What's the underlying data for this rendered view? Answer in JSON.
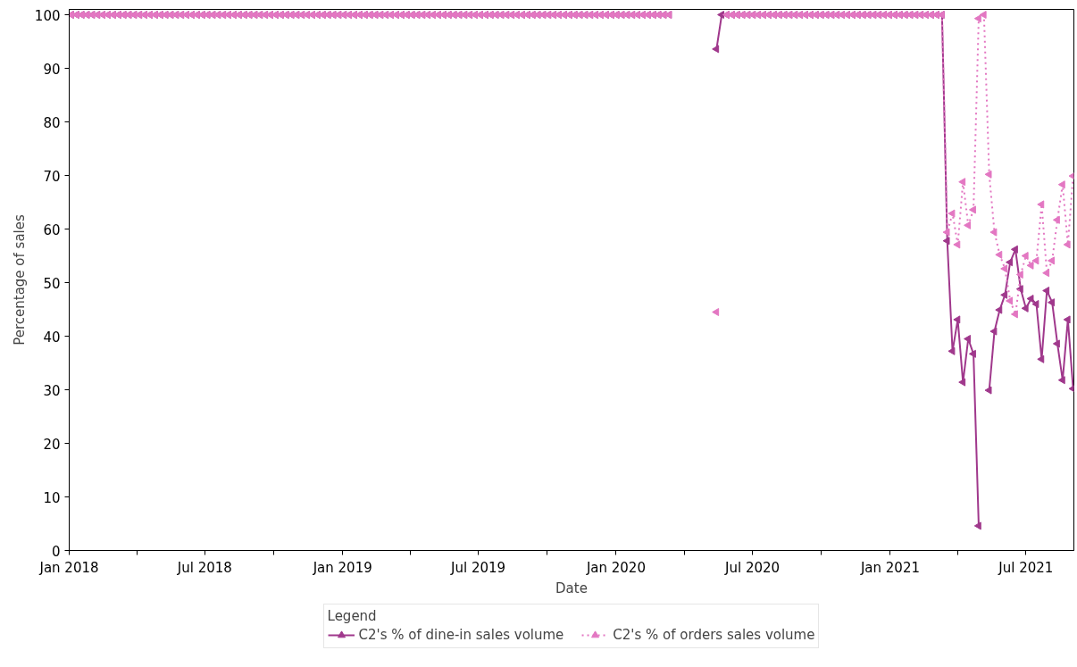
{
  "chart_data": {
    "type": "line",
    "xlabel": "Date",
    "ylabel": "Percentage of sales",
    "legend_title": "Legend",
    "legend": "bottom",
    "marker": "triangle",
    "grid": false,
    "xlim": [
      "2018-01-01",
      "2021-09-03"
    ],
    "ylim": [
      0,
      101
    ],
    "yticks": [
      0,
      10,
      20,
      30,
      40,
      50,
      60,
      70,
      80,
      90,
      100
    ],
    "xticks": [
      {
        "value": "2018-01-01",
        "label": "Jan 2018"
      },
      {
        "value": "2018-04-01",
        "label": null
      },
      {
        "value": "2018-07-01",
        "label": "Jul 2018"
      },
      {
        "value": "2018-10-01",
        "label": null
      },
      {
        "value": "2019-01-01",
        "label": "Jan 2019"
      },
      {
        "value": "2019-04-01",
        "label": null
      },
      {
        "value": "2019-07-01",
        "label": "Jul 2019"
      },
      {
        "value": "2019-10-01",
        "label": null
      },
      {
        "value": "2020-01-01",
        "label": "Jan 2020"
      },
      {
        "value": "2020-04-01",
        "label": null
      },
      {
        "value": "2020-07-01",
        "label": "Jul 2020"
      },
      {
        "value": "2020-10-01",
        "label": null
      },
      {
        "value": "2021-01-01",
        "label": "Jan 2021"
      },
      {
        "value": "2021-04-01",
        "label": null
      },
      {
        "value": "2021-07-01",
        "label": "Jul 2021"
      }
    ],
    "x": [
      "2018-01-04",
      "2018-01-11",
      "2018-01-18",
      "2018-01-25",
      "2018-02-01",
      "2018-02-08",
      "2018-02-15",
      "2018-02-22",
      "2018-03-01",
      "2018-03-08",
      "2018-03-15",
      "2018-03-22",
      "2018-03-29",
      "2018-04-05",
      "2018-04-12",
      "2018-04-19",
      "2018-04-26",
      "2018-05-03",
      "2018-05-10",
      "2018-05-17",
      "2018-05-24",
      "2018-05-31",
      "2018-06-07",
      "2018-06-14",
      "2018-06-21",
      "2018-06-28",
      "2018-07-05",
      "2018-07-12",
      "2018-07-19",
      "2018-07-26",
      "2018-08-02",
      "2018-08-09",
      "2018-08-16",
      "2018-08-23",
      "2018-08-30",
      "2018-09-06",
      "2018-09-13",
      "2018-09-20",
      "2018-09-27",
      "2018-10-04",
      "2018-10-11",
      "2018-10-18",
      "2018-10-25",
      "2018-11-01",
      "2018-11-08",
      "2018-11-15",
      "2018-11-22",
      "2018-11-29",
      "2018-12-06",
      "2018-12-13",
      "2018-12-20",
      "2018-12-27",
      "2019-01-03",
      "2019-01-10",
      "2019-01-17",
      "2019-01-24",
      "2019-01-31",
      "2019-02-07",
      "2019-02-14",
      "2019-02-21",
      "2019-02-28",
      "2019-03-07",
      "2019-03-14",
      "2019-03-21",
      "2019-03-28",
      "2019-04-04",
      "2019-04-11",
      "2019-04-18",
      "2019-04-25",
      "2019-05-02",
      "2019-05-09",
      "2019-05-16",
      "2019-05-23",
      "2019-05-30",
      "2019-06-06",
      "2019-06-13",
      "2019-06-20",
      "2019-06-27",
      "2019-07-04",
      "2019-07-11",
      "2019-07-18",
      "2019-07-25",
      "2019-08-01",
      "2019-08-08",
      "2019-08-15",
      "2019-08-22",
      "2019-08-29",
      "2019-09-05",
      "2019-09-12",
      "2019-09-19",
      "2019-09-26",
      "2019-10-03",
      "2019-10-10",
      "2019-10-17",
      "2019-10-24",
      "2019-10-31",
      "2019-11-07",
      "2019-11-14",
      "2019-11-21",
      "2019-11-28",
      "2019-12-05",
      "2019-12-12",
      "2019-12-19",
      "2019-12-26",
      "2020-01-02",
      "2020-01-09",
      "2020-01-16",
      "2020-01-23",
      "2020-01-30",
      "2020-02-06",
      "2020-02-13",
      "2020-02-20",
      "2020-02-27",
      "2020-03-05",
      "2020-03-12",
      "2020-03-19",
      "2020-03-26",
      "2020-04-02",
      "2020-04-09",
      "2020-04-16",
      "2020-04-23",
      "2020-04-30",
      "2020-05-07",
      "2020-05-14",
      "2020-05-21",
      "2020-05-28",
      "2020-06-04",
      "2020-06-11",
      "2020-06-18",
      "2020-06-25",
      "2020-07-02",
      "2020-07-09",
      "2020-07-16",
      "2020-07-23",
      "2020-07-30",
      "2020-08-06",
      "2020-08-13",
      "2020-08-20",
      "2020-08-27",
      "2020-09-03",
      "2020-09-10",
      "2020-09-17",
      "2020-09-24",
      "2020-10-01",
      "2020-10-08",
      "2020-10-15",
      "2020-10-22",
      "2020-10-29",
      "2020-11-05",
      "2020-11-12",
      "2020-11-19",
      "2020-11-26",
      "2020-12-03",
      "2020-12-10",
      "2020-12-17",
      "2020-12-24",
      "2020-12-31",
      "2021-01-07",
      "2021-01-14",
      "2021-01-21",
      "2021-01-28",
      "2021-02-04",
      "2021-02-11",
      "2021-02-18",
      "2021-02-25",
      "2021-03-04",
      "2021-03-11",
      "2021-03-18",
      "2021-03-25",
      "2021-04-01",
      "2021-04-08",
      "2021-04-15",
      "2021-04-22",
      "2021-04-29",
      "2021-05-06",
      "2021-05-13",
      "2021-05-20",
      "2021-05-27",
      "2021-06-03",
      "2021-06-10",
      "2021-06-17",
      "2021-06-24",
      "2021-07-01",
      "2021-07-08",
      "2021-07-15",
      "2021-07-22",
      "2021-07-29",
      "2021-08-05",
      "2021-08-12",
      "2021-08-19",
      "2021-08-26",
      "2021-09-02"
    ],
    "series": [
      {
        "name": "C2's % of dine-in sales volume",
        "color": "#a0388c",
        "line_style": "solid",
        "values": [
          100,
          100,
          100,
          100,
          100,
          100,
          100,
          100,
          100,
          100,
          100,
          100,
          100,
          100,
          100,
          100,
          100,
          100,
          100,
          100,
          100,
          100,
          100,
          100,
          100,
          100,
          100,
          100,
          100,
          100,
          100,
          100,
          100,
          100,
          100,
          100,
          100,
          100,
          100,
          100,
          100,
          100,
          100,
          100,
          100,
          100,
          100,
          100,
          100,
          100,
          100,
          100,
          100,
          100,
          100,
          100,
          100,
          100,
          100,
          100,
          100,
          100,
          100,
          100,
          100,
          100,
          100,
          100,
          100,
          100,
          100,
          100,
          100,
          100,
          100,
          100,
          100,
          100,
          100,
          100,
          100,
          100,
          100,
          100,
          100,
          100,
          100,
          100,
          100,
          100,
          100,
          100,
          100,
          100,
          100,
          100,
          100,
          100,
          100,
          100,
          100,
          100,
          100,
          100,
          100,
          100,
          100,
          100,
          100,
          100,
          100,
          100,
          100,
          100,
          100,
          null,
          null,
          null,
          null,
          null,
          null,
          null,
          null,
          93.6,
          100,
          100,
          100,
          100,
          100,
          100,
          100,
          100,
          100,
          100,
          100,
          100,
          100,
          100,
          100,
          100,
          100,
          100,
          100,
          100,
          100,
          100,
          100,
          100,
          100,
          100,
          100,
          100,
          100,
          100,
          100,
          100,
          100,
          100,
          100,
          100,
          100,
          100,
          100,
          100,
          100,
          100,
          100,
          57.8,
          37.2,
          43.1,
          31.4,
          39.5,
          36.7,
          4.6,
          null,
          29.9,
          40.9,
          44.9,
          47.7,
          53.8,
          56.2,
          48.8,
          45.2,
          47.0,
          46.0,
          35.7,
          48.5,
          46.3,
          38.6,
          31.8,
          43.1,
          30.2
        ]
      },
      {
        "name": "C2's % of orders sales volume",
        "color": "#e377c2",
        "line_style": "dotted",
        "values": [
          100,
          100,
          100,
          100,
          100,
          100,
          100,
          100,
          100,
          100,
          100,
          100,
          100,
          100,
          100,
          100,
          100,
          100,
          100,
          100,
          100,
          100,
          100,
          100,
          100,
          100,
          100,
          100,
          100,
          100,
          100,
          100,
          100,
          100,
          100,
          100,
          100,
          100,
          100,
          100,
          100,
          100,
          100,
          100,
          100,
          100,
          100,
          100,
          100,
          100,
          100,
          100,
          100,
          100,
          100,
          100,
          100,
          100,
          100,
          100,
          100,
          100,
          100,
          100,
          100,
          100,
          100,
          100,
          100,
          100,
          100,
          100,
          100,
          100,
          100,
          100,
          100,
          100,
          100,
          100,
          100,
          100,
          100,
          100,
          100,
          100,
          100,
          100,
          100,
          100,
          100,
          100,
          100,
          100,
          100,
          100,
          100,
          100,
          100,
          100,
          100,
          100,
          100,
          100,
          100,
          100,
          100,
          100,
          100,
          100,
          100,
          100,
          100,
          100,
          100,
          null,
          null,
          null,
          null,
          null,
          null,
          null,
          null,
          44.5,
          null,
          100,
          100,
          100,
          100,
          100,
          100,
          100,
          100,
          100,
          100,
          100,
          100,
          100,
          100,
          100,
          100,
          100,
          100,
          100,
          100,
          100,
          100,
          100,
          100,
          100,
          100,
          100,
          100,
          100,
          100,
          100,
          100,
          100,
          100,
          100,
          100,
          100,
          100,
          100,
          100,
          100,
          100,
          59.4,
          62.9,
          57.1,
          68.8,
          60.7,
          63.6,
          99.3,
          100,
          70.2,
          59.4,
          55.2,
          52.6,
          46.6,
          44.1,
          51.5,
          55.0,
          53.2,
          54.1,
          64.6,
          51.8,
          54.1,
          61.7,
          68.3,
          57.1,
          69.9
        ]
      }
    ]
  }
}
